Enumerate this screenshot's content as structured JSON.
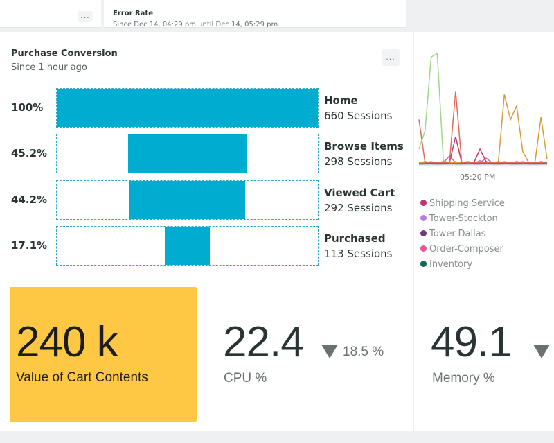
{
  "top_bar": {
    "more_label": "...",
    "error_rate_title": "Error Rate",
    "error_rate_range": "Since Dec 14, 04:29 pm until Dec 14, 05:29 pm"
  },
  "funnel": {
    "title": "Purchase Conversion",
    "subtitle": "Since 1 hour ago",
    "more_label": "...",
    "stages": [
      {
        "percent_label": "100%",
        "name": "Home",
        "sessions": "660 Sessions",
        "fraction": 1.0
      },
      {
        "percent_label": "45.2%",
        "name": "Browse Items",
        "sessions": "298 Sessions",
        "fraction": 0.452
      },
      {
        "percent_label": "44.2%",
        "name": "Viewed Cart",
        "sessions": "292 Sessions",
        "fraction": 0.442
      },
      {
        "percent_label": "17.1%",
        "name": "Purchased",
        "sessions": "113 Sessions",
        "fraction": 0.171
      }
    ],
    "bar_color": "#00acd0"
  },
  "line_chart": {
    "time_label": "05:20 PM",
    "legend": [
      {
        "name": "Shipping Service",
        "color": "#c0356b"
      },
      {
        "name": "Tower-Stockton",
        "color": "#b77fdc"
      },
      {
        "name": "Tower-Dallas",
        "color": "#6a3f76"
      },
      {
        "name": "Order-Composer",
        "color": "#e0569f"
      },
      {
        "name": "Inventory",
        "color": "#11675d"
      }
    ]
  },
  "cart_value": {
    "value": "240 k",
    "label": "Value of Cart Contents",
    "color": "#fec844"
  },
  "cpu": {
    "value": "22.4",
    "delta": "18.5 %",
    "label": "CPU %"
  },
  "memory": {
    "value": "49.1",
    "label": "Memory %"
  },
  "chart_data": {
    "type": "line",
    "x_label": "05:20 PM",
    "series": [
      {
        "name": "Shipping Service",
        "color": "#c0356b",
        "values": [
          2,
          3,
          2,
          2,
          3,
          2,
          25,
          2,
          3,
          2,
          14,
          3,
          2,
          3,
          2,
          2,
          3,
          2,
          2,
          2,
          3,
          2
        ]
      },
      {
        "name": "Tower-Stockton",
        "color": "#b77fdc",
        "values": [
          1,
          2,
          1,
          1,
          2,
          1,
          3,
          1,
          2,
          1,
          4,
          1,
          2,
          1,
          1,
          2,
          1,
          1,
          2,
          1,
          1,
          2
        ]
      },
      {
        "name": "Tower-Dallas",
        "color": "#6a3f76",
        "values": [
          1,
          1,
          2,
          1,
          1,
          2,
          1,
          1,
          2,
          1,
          1,
          2,
          1,
          1,
          2,
          1,
          1,
          2,
          1,
          1,
          2,
          1
        ]
      },
      {
        "name": "Order-Composer",
        "color": "#e0569f",
        "values": [
          2,
          2,
          3,
          2,
          2,
          8,
          2,
          2,
          3,
          2,
          2,
          6,
          2,
          2,
          3,
          2,
          2,
          3,
          2,
          2,
          3,
          2
        ]
      },
      {
        "name": "Inventory",
        "color": "#11675d",
        "values": [
          1,
          1,
          1,
          1,
          1,
          1,
          1,
          1,
          1,
          1,
          1,
          1,
          1,
          1,
          1,
          1,
          1,
          1,
          1,
          1,
          1,
          1
        ]
      },
      {
        "name": "",
        "color": "#9fd68c",
        "values": [
          14,
          30,
          95,
          98,
          4,
          2,
          2,
          2,
          2,
          2,
          2,
          2,
          2,
          2,
          2,
          2,
          2,
          2,
          2,
          2,
          2,
          2
        ]
      },
      {
        "name": "",
        "color": "#d99a39",
        "values": [
          2,
          2,
          2,
          2,
          2,
          2,
          2,
          2,
          2,
          2,
          3,
          2,
          2,
          2,
          62,
          40,
          52,
          12,
          2,
          2,
          42,
          5
        ]
      },
      {
        "name": "",
        "color": "#e06a5a",
        "values": [
          40,
          2,
          2,
          2,
          2,
          2,
          65,
          2,
          2,
          2,
          2,
          2,
          2,
          2,
          2,
          2,
          2,
          2,
          2,
          2,
          2,
          2
        ]
      }
    ],
    "ylim": [
      0,
      100
    ],
    "grid": false
  }
}
